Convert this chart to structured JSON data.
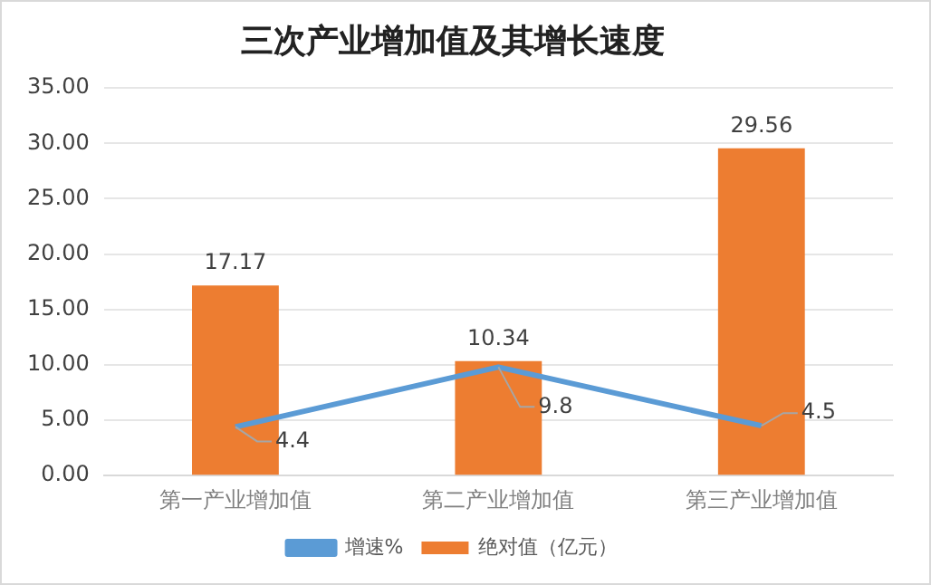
{
  "chart_data": {
    "type": "bar",
    "title": "三次产业增加值及其增长速度",
    "categories": [
      "第一产业增加值",
      "第二产业增加值",
      "第三产业增加值"
    ],
    "series": [
      {
        "name": "绝对值（亿元）",
        "color": "#ed7d31",
        "values": [
          17.17,
          10.34,
          29.56
        ]
      },
      {
        "name": "增速%",
        "type": "line",
        "color": "#5b9bd5",
        "values": [
          4.4,
          9.8,
          4.5
        ]
      }
    ],
    "ylim": [
      0,
      35
    ],
    "yticks": [
      {
        "value": 0,
        "label": "0.00"
      },
      {
        "value": 5,
        "label": "5.00"
      },
      {
        "value": 10,
        "label": "10.00"
      },
      {
        "value": 15,
        "label": "15.00"
      },
      {
        "value": 20,
        "label": "20.00"
      },
      {
        "value": 25,
        "label": "25.00"
      },
      {
        "value": 30,
        "label": "30.00"
      },
      {
        "value": 35,
        "label": "35.00"
      }
    ],
    "grid": "y",
    "legend": "bottom",
    "marker": "none",
    "data_labels": true
  }
}
